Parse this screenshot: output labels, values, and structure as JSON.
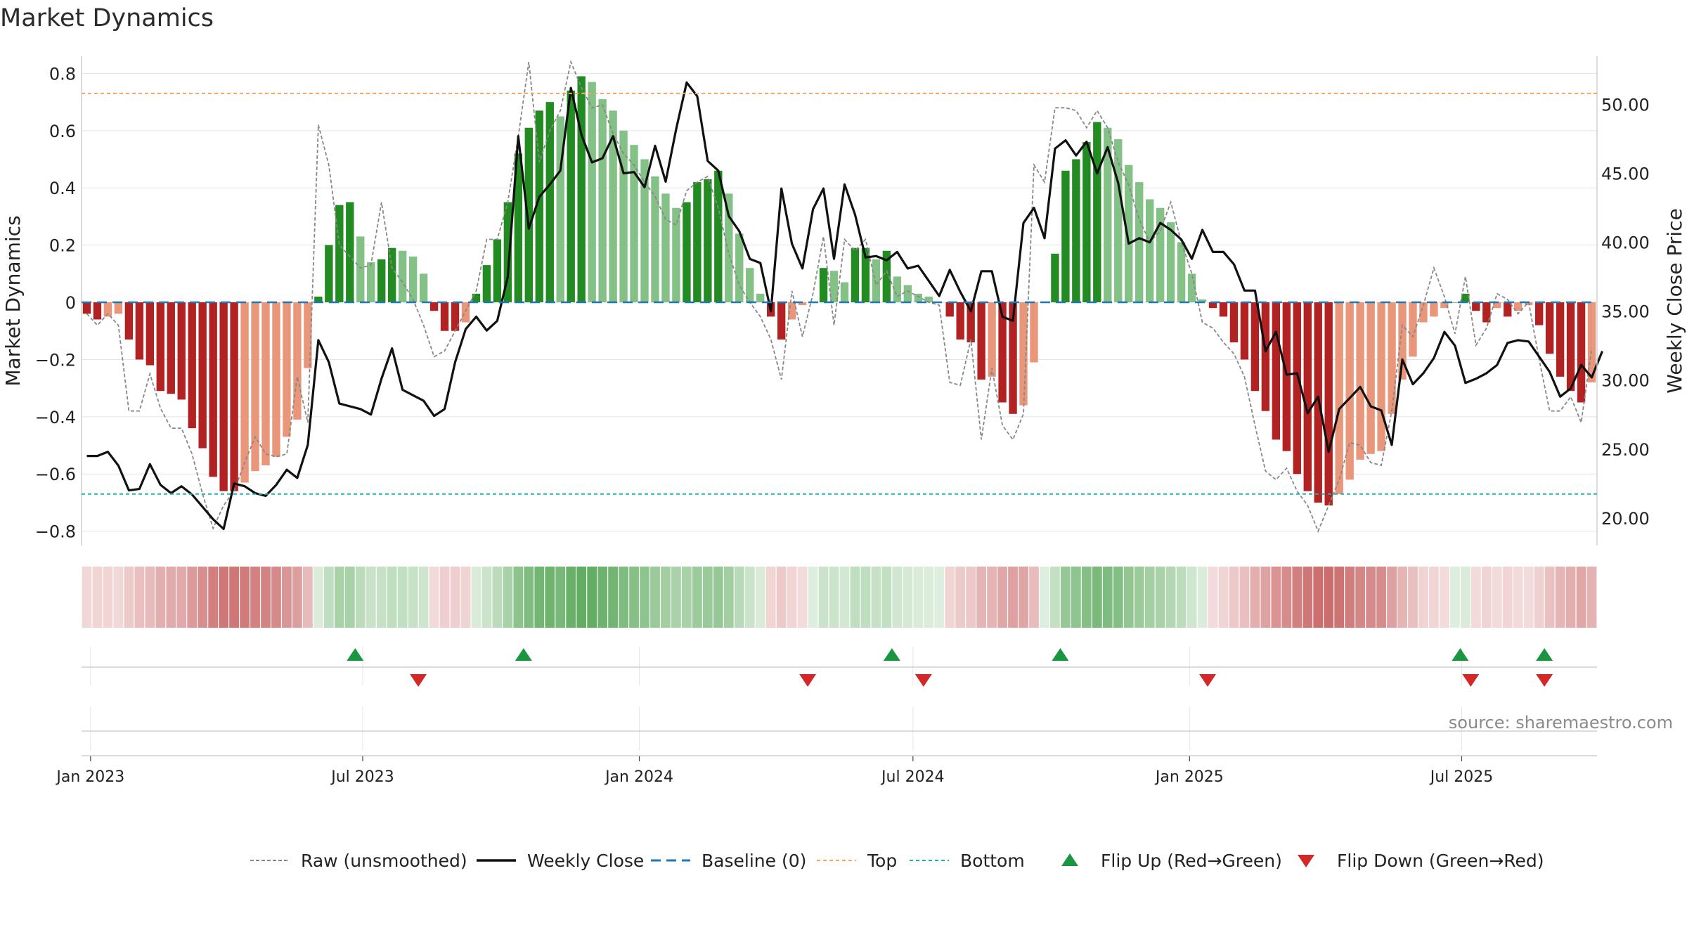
{
  "source": "source: sharemaestro.com",
  "chart_data": {
    "type": "bar",
    "title": "Market Dynamics",
    "ylabel": "Market Dynamics",
    "y2label": "Weekly Close Price",
    "ylim": [
      -0.85,
      0.86
    ],
    "y2lim": [
      18.0,
      53.5
    ],
    "yticks": [
      0.8,
      0.6,
      0.4,
      0.2,
      0,
      -0.2,
      -0.4,
      -0.6,
      -0.8
    ],
    "ytick_labels": [
      "0.8",
      "0.6",
      "0.4",
      "0.2",
      "0",
      "−0.2",
      "−0.4",
      "−0.6",
      "−0.8"
    ],
    "y2ticks": [
      50,
      45,
      40,
      35,
      30,
      25,
      20
    ],
    "y2tick_labels": [
      "50.00",
      "45.00",
      "40.00",
      "35.00",
      "30.00",
      "25.00",
      "20.00"
    ],
    "xticks": [
      "2023-01-01",
      "2023-07-01",
      "2024-01-01",
      "2024-07-01",
      "2025-01-01",
      "2025-07-01"
    ],
    "xtick_labels": [
      "Jan 2023",
      "Jul 2023",
      "Jan 2024",
      "Jul 2024",
      "Jan 2025",
      "Jul 2025"
    ],
    "x_start": "2022-12-26",
    "x_end": "2025-09-29",
    "top_level": 0.73,
    "bottom_level": -0.67,
    "grid": true,
    "legend_position": "bottom",
    "colors": {
      "strong_green": "#228b22",
      "light_green": "#84c187",
      "strong_red": "#b22222",
      "light_red": "#e9967a",
      "raw": "#888888",
      "close": "#111111",
      "baseline": "#1f77b4",
      "top": "#f4a460",
      "bottom": "#20b2aa",
      "flip_up": "#1a9641",
      "flip_down": "#d62728"
    },
    "series": [
      {
        "name": "Market Dynamics",
        "values": [
          -0.04,
          -0.06,
          -0.05,
          -0.04,
          -0.13,
          -0.2,
          -0.22,
          -0.31,
          -0.32,
          -0.34,
          -0.44,
          -0.51,
          -0.61,
          -0.66,
          -0.66,
          -0.63,
          -0.59,
          -0.57,
          -0.54,
          -0.47,
          -0.41,
          -0.23,
          0.02,
          0.2,
          0.34,
          0.35,
          0.23,
          0.14,
          0.15,
          0.19,
          0.18,
          0.16,
          0.1,
          -0.03,
          -0.1,
          -0.1,
          -0.07,
          0.03,
          0.13,
          0.22,
          0.35,
          0.52,
          0.61,
          0.67,
          0.7,
          0.65,
          0.74,
          0.79,
          0.77,
          0.71,
          0.67,
          0.6,
          0.55,
          0.5,
          0.44,
          0.38,
          0.33,
          0.35,
          0.42,
          0.43,
          0.46,
          0.38,
          0.24,
          0.12,
          0.03,
          -0.05,
          -0.13,
          -0.06,
          -0.01,
          0.0,
          0.12,
          0.11,
          0.07,
          0.19,
          0.19,
          0.15,
          0.18,
          0.09,
          0.06,
          0.03,
          0.02,
          0.0,
          -0.05,
          -0.13,
          -0.14,
          -0.27,
          -0.26,
          -0.35,
          -0.39,
          -0.36,
          -0.21,
          0.0,
          0.17,
          0.46,
          0.5,
          0.56,
          0.63,
          0.61,
          0.57,
          0.48,
          0.42,
          0.36,
          0.33,
          0.28,
          0.21,
          0.1,
          0.01,
          -0.02,
          -0.05,
          -0.14,
          -0.2,
          -0.31,
          -0.38,
          -0.48,
          -0.52,
          -0.6,
          -0.66,
          -0.7,
          -0.71,
          -0.67,
          -0.62,
          -0.55,
          -0.53,
          -0.52,
          -0.39,
          -0.27,
          -0.19,
          -0.07,
          -0.05,
          -0.02,
          0.0,
          0.03,
          -0.03,
          -0.07,
          -0.02,
          -0.05,
          -0.03,
          -0.01,
          -0.08,
          -0.18,
          -0.26,
          -0.31,
          -0.35,
          -0.28
        ]
      },
      {
        "name": "Raw (unsmoothed)",
        "values": [
          -0.04,
          -0.08,
          -0.04,
          -0.08,
          -0.38,
          -0.38,
          -0.25,
          -0.37,
          -0.44,
          -0.44,
          -0.53,
          -0.67,
          -0.79,
          -0.71,
          -0.66,
          -0.56,
          -0.47,
          -0.53,
          -0.54,
          -0.53,
          -0.26,
          -0.42,
          0.62,
          0.48,
          0.2,
          0.16,
          0.12,
          0.13,
          0.35,
          0.12,
          0.07,
          0.01,
          -0.08,
          -0.19,
          -0.17,
          -0.1,
          -0.03,
          0.04,
          0.22,
          0.22,
          0.35,
          0.58,
          0.84,
          0.49,
          0.6,
          0.67,
          0.84,
          0.75,
          0.68,
          0.69,
          0.59,
          0.52,
          0.48,
          0.42,
          0.37,
          0.29,
          0.27,
          0.39,
          0.42,
          0.44,
          0.33,
          0.17,
          0.06,
          0.0,
          -0.05,
          -0.13,
          -0.27,
          0.04,
          -0.12,
          0.03,
          0.23,
          -0.08,
          0.22,
          0.18,
          0.22,
          0.06,
          0.11,
          0.02,
          0.04,
          0.02,
          0.0,
          -0.01,
          -0.28,
          -0.29,
          -0.13,
          -0.48,
          -0.23,
          -0.43,
          -0.48,
          -0.39,
          0.48,
          0.42,
          0.68,
          0.68,
          0.67,
          0.61,
          0.67,
          0.61,
          0.49,
          0.41,
          0.29,
          0.21,
          0.25,
          0.35,
          0.21,
          0.1,
          -0.07,
          -0.09,
          -0.14,
          -0.18,
          -0.26,
          -0.43,
          -0.59,
          -0.62,
          -0.58,
          -0.66,
          -0.71,
          -0.8,
          -0.71,
          -0.62,
          -0.49,
          -0.5,
          -0.56,
          -0.57,
          -0.38,
          -0.08,
          -0.12,
          -0.01,
          0.12,
          0.02,
          -0.11,
          0.09,
          -0.15,
          -0.09,
          0.03,
          0.01,
          -0.04,
          0.0,
          -0.2,
          -0.38,
          -0.38,
          -0.33,
          -0.42,
          -0.16
        ]
      },
      {
        "name": "Weekly Close",
        "values": [
          24.5,
          24.5,
          24.8,
          23.8,
          22.0,
          22.1,
          23.9,
          22.4,
          21.8,
          22.3,
          21.7,
          20.8,
          19.9,
          19.2,
          22.5,
          22.3,
          21.8,
          21.6,
          22.4,
          23.5,
          22.9,
          25.3,
          32.9,
          31.3,
          28.3,
          28.1,
          27.9,
          27.5,
          30.1,
          32.3,
          29.3,
          28.9,
          28.5,
          27.4,
          27.9,
          31.3,
          33.7,
          34.6,
          33.6,
          34.3,
          37.5,
          47.7,
          41.0,
          43.3,
          44.2,
          45.2,
          51.2,
          47.8,
          45.8,
          46.1,
          47.7,
          45.0,
          45.1,
          44.0,
          47.0,
          44.4,
          48.2,
          51.6,
          50.6,
          45.9,
          45.2,
          41.9,
          40.8,
          38.8,
          38.5,
          35.0,
          43.9,
          39.9,
          38.1,
          42.4,
          43.9,
          38.8,
          44.2,
          42.0,
          38.9,
          39.0,
          38.7,
          39.3,
          38.1,
          38.3,
          37.2,
          36.1,
          38.0,
          36.4,
          35.0,
          37.9,
          37.9,
          34.6,
          34.3,
          41.4,
          42.5,
          40.3,
          46.8,
          47.4,
          46.3,
          47.3,
          45.0,
          46.9,
          44.3,
          39.9,
          40.3,
          40.0,
          41.4,
          40.9,
          40.2,
          38.8,
          40.9,
          39.3,
          39.3,
          38.4,
          36.5,
          36.5,
          32.1,
          33.5,
          30.4,
          30.5,
          27.6,
          28.8,
          24.8,
          27.9,
          28.7,
          29.5,
          28.1,
          27.8,
          25.3,
          31.5,
          29.7,
          30.5,
          31.6,
          33.5,
          32.5,
          29.8,
          30.1,
          30.5,
          31.1,
          32.7,
          32.9,
          32.8,
          31.7,
          30.6,
          28.8,
          29.4,
          31.1,
          30.2,
          32.1
        ]
      }
    ],
    "strip": {
      "name": "Regime strip"
    },
    "flips_up": [
      "2023-06-26",
      "2023-10-16",
      "2024-06-17",
      "2024-10-07",
      "2025-06-30",
      "2025-08-25"
    ],
    "flips_down": [
      "2023-08-07",
      "2024-04-22",
      "2024-07-08",
      "2025-01-13",
      "2025-07-07",
      "2025-08-25"
    ],
    "legend": [
      "Raw (unsmoothed)",
      "Weekly Close",
      "Baseline (0)",
      "Top",
      "Bottom",
      "Flip Up (Red→Green)",
      "Flip Down (Green→Red)"
    ]
  }
}
